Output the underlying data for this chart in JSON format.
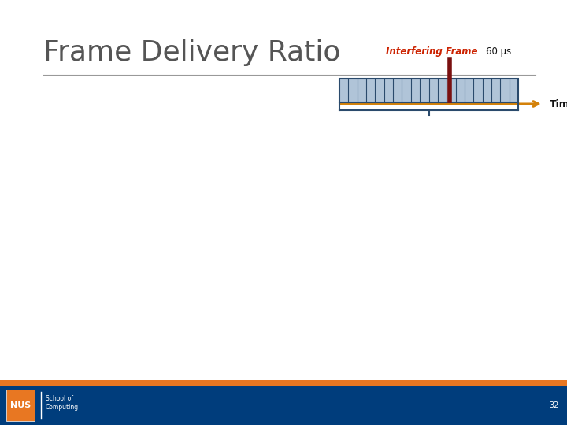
{
  "title": "Frame Delivery Ratio",
  "title_fontsize": 26,
  "title_color": "#555555",
  "interfering_label_red": "Inter",
  "interfering_label_red2": "fering Frame",
  "interfering_label_black": "60 μs",
  "label_fontsize": 8.5,
  "time_label": "Time",
  "time_fontsize": 9,
  "page_number": "32",
  "bg_color": "#ffffff",
  "footer_bar_color": "#E87722",
  "footer_bg_color": "#003D7C",
  "frame_fill": "#B0C4D8",
  "frame_edge": "#2A4A6C",
  "n_segments": 20,
  "marker_color": "#7A1010",
  "timeline_color": "#D4820A",
  "brace_color": "#2A4A6C",
  "header_line_color": "#999999",
  "school_text": "School of\nComputing"
}
